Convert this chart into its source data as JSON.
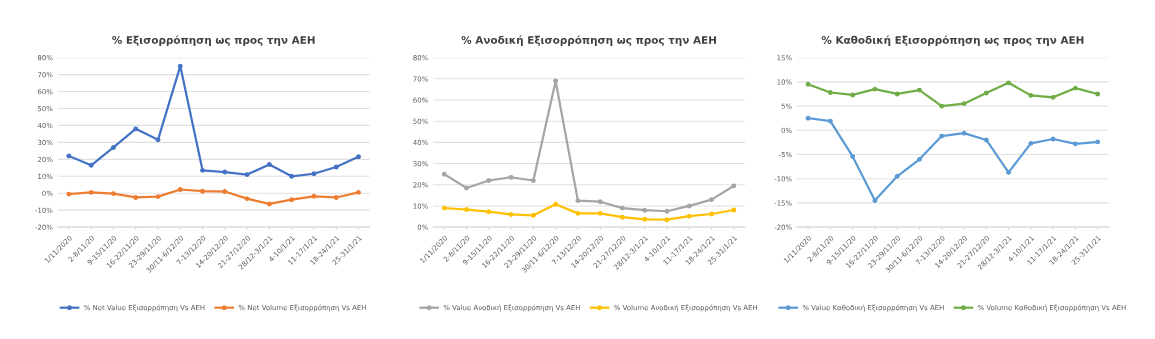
{
  "chart_data": [
    {
      "type": "line",
      "title": "% Εξισορρόπηση ως προς την ΑΕΗ",
      "categories": [
        "1/11/2020",
        "2-8/11/20",
        "9-15/11/20",
        "16-22/11/20",
        "23-29/11/20",
        "30/11-6/12/20",
        "7-13/12/20",
        "14-20/12/20",
        "21-27/12/20",
        "28/12-3/1/21",
        "4-10/1/21",
        "11-17/1/21",
        "18-24/1/21",
        "25-31/1/21"
      ],
      "series": [
        {
          "name": "% Net Value Εξισορρόπηση Vs ΑΕΗ",
          "color": "#4472c4",
          "values": [
            22,
            16.5,
            27,
            38,
            31.5,
            75,
            13.5,
            12.5,
            11,
            17,
            10,
            11.5,
            15.5,
            21.5
          ]
        },
        {
          "name": "% Net Volume Εξισορρόπηση Vs ΑΕΗ",
          "color": "#ed7d31",
          "values": [
            -0.5,
            0.5,
            -0.2,
            -2.5,
            -2,
            2.2,
            1.2,
            1,
            -3.2,
            -6.3,
            -3.8,
            -1.8,
            -2.5,
            0.5
          ]
        }
      ],
      "ylim": [
        -20,
        80
      ],
      "yticks": [
        {
          "value": -20,
          "label": "-20%"
        },
        {
          "value": -10,
          "label": "-10%"
        },
        {
          "value": 0,
          "label": "0%"
        },
        {
          "value": 10,
          "label": "10%"
        },
        {
          "value": 20,
          "label": "20%"
        },
        {
          "value": 30,
          "label": "30%"
        },
        {
          "value": 40,
          "label": "40%"
        },
        {
          "value": 50,
          "label": "50%"
        },
        {
          "value": 60,
          "label": "60%"
        },
        {
          "value": 70,
          "label": "70%"
        },
        {
          "value": 80,
          "label": "80%"
        }
      ],
      "grid": "y",
      "legend": "bottom",
      "marker": "circle",
      "line_style": "solid"
    },
    {
      "type": "line",
      "title": "% Ανοδική Εξισορρόπηση ως προς την ΑΕΗ",
      "categories": [
        "1/11/2020",
        "2-8/11/20",
        "9-15/11/20",
        "16-22/11/20",
        "23-29/11/20",
        "30/11-6/12/20",
        "7-13/12/20",
        "14-20/12/20",
        "21-27/12/20",
        "28/12-3/1/21",
        "4-10/1/21",
        "11-17/1/21",
        "18-24/1/21",
        "25-31/1/21"
      ],
      "series": [
        {
          "name": "% Value Ανοδική Εξισορρόπηση Vs ΑΕΗ",
          "color": "#a5a5a5",
          "values": [
            25,
            18.5,
            22,
            23.5,
            22,
            69,
            12.5,
            12,
            9,
            8,
            7.5,
            10,
            13,
            19.5
          ]
        },
        {
          "name": "% Volume Ανοδική Εξισορρόπηση Vs ΑΕΗ",
          "color": "#ffc000",
          "values": [
            9,
            8.3,
            7.3,
            6,
            5.6,
            10.8,
            6.5,
            6.5,
            4.7,
            3.7,
            3.5,
            5.2,
            6.2,
            8.1
          ]
        }
      ],
      "ylim": [
        0,
        80
      ],
      "yticks": [
        {
          "value": 0,
          "label": "0%"
        },
        {
          "value": 10,
          "label": "10%"
        },
        {
          "value": 20,
          "label": "20%"
        },
        {
          "value": 30,
          "label": "30%"
        },
        {
          "value": 40,
          "label": "40%"
        },
        {
          "value": 50,
          "label": "50%"
        },
        {
          "value": 60,
          "label": "60%"
        },
        {
          "value": 70,
          "label": "70%"
        },
        {
          "value": 80,
          "label": "80%"
        }
      ],
      "grid": "y",
      "legend": "bottom",
      "marker": "circle",
      "line_style": "solid"
    },
    {
      "type": "line",
      "title": "% Καθοδική Εξισορρόπηση ως προς την ΑΕΗ",
      "categories": [
        "1/11/2020",
        "2-8/11/20",
        "9-15/11/20",
        "16-22/11/20",
        "23-29/11/20",
        "30/11-6/12/20",
        "7-13/12/20",
        "14-20/12/20",
        "21-27/12/20",
        "28/12-3/1/21",
        "4-10/1/21",
        "11-17/1/21",
        "18-24/1/21",
        "25-31/1/21"
      ],
      "series": [
        {
          "name": "% Value Καθοδική Εξισορρόπηση Vs ΑΕΗ",
          "color": "#5b9bd5",
          "values": [
            2.5,
            1.9,
            -5.4,
            -14.5,
            -9.5,
            -6,
            -1.2,
            -0.6,
            -2,
            -8.7,
            -2.7,
            -1.8,
            -2.8,
            -2.4
          ]
        },
        {
          "name": "% Volume Καθοδική Εξισορρόπηση Vs ΑΕΗ",
          "color": "#70ad47",
          "values": [
            9.5,
            7.8,
            7.3,
            8.5,
            7.5,
            8.3,
            5,
            5.5,
            7.7,
            9.8,
            7.2,
            6.8,
            8.7,
            7.5
          ]
        }
      ],
      "ylim": [
        -20,
        15
      ],
      "yticks": [
        {
          "value": -20,
          "label": "-20%"
        },
        {
          "value": -15,
          "label": "-15%"
        },
        {
          "value": -10,
          "label": "-10%"
        },
        {
          "value": -5,
          "label": "-5%"
        },
        {
          "value": 0,
          "label": "0%"
        },
        {
          "value": 5,
          "label": "5%"
        },
        {
          "value": 10,
          "label": "10%"
        },
        {
          "value": 15,
          "label": "15%"
        }
      ],
      "grid": "y",
      "legend": "bottom",
      "marker": "circle",
      "line_style": "solid"
    }
  ]
}
